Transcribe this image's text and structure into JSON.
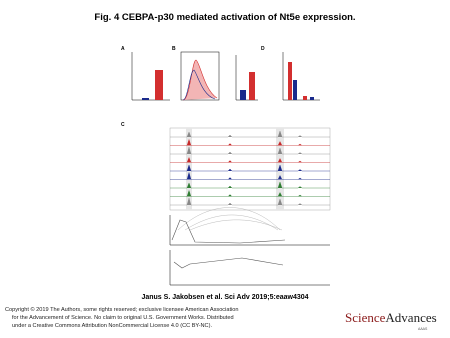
{
  "header": {
    "title": "Fig. 4 CEBPA-p30 mediated activation of Nt5e expression."
  },
  "figure": {
    "panels": [
      "A",
      "B",
      "C",
      "D"
    ]
  },
  "citation": "Janus S. Jakobsen et al. Sci Adv 2019;5:eaaw4304",
  "copyright": [
    "Copyright © 2019 The Authors, some rights reserved; exclusive licensee American Association",
    "for the Advancement of Science. No claim to original U.S. Government Works. Distributed",
    "under a Creative Commons Attribution NonCommercial License 4.0 (CC BY-NC)."
  ],
  "logo": {
    "parts": [
      "Science",
      "Advances"
    ],
    "tag": "AAAS"
  }
}
